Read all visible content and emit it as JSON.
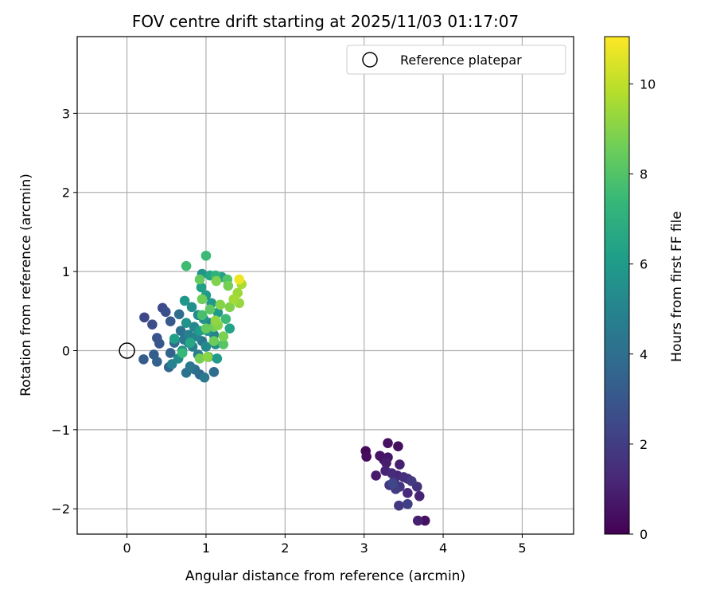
{
  "chart_data": {
    "type": "scatter",
    "title": "FOV centre drift starting at 2025/11/03 01:17:07",
    "xlabel": "Angular distance from reference (arcmin)",
    "ylabel": "Rotation from reference (arcmin)",
    "xlim": [
      -0.63,
      5.65
    ],
    "ylim": [
      -2.32,
      3.97
    ],
    "x_ticks": [
      "0",
      "1",
      "2",
      "3",
      "4",
      "5"
    ],
    "y_ticks": [
      "−2",
      "−1",
      "0",
      "1",
      "2",
      "3"
    ],
    "grid": true,
    "legend": {
      "position": "top-right",
      "entries": [
        "Reference platepar"
      ]
    },
    "reference_point": {
      "x": 0,
      "y": 0,
      "label": "Reference platepar"
    },
    "colorbar": {
      "label": "Hours from first FF file",
      "min": 0,
      "max": 11.05,
      "ticks": [
        "0",
        "2",
        "4",
        "6",
        "8",
        "10"
      ],
      "colormap": "viridis"
    },
    "color_stops": [
      "#440154",
      "#482878",
      "#3e4989",
      "#31688e",
      "#26828e",
      "#1f9e89",
      "#35b779",
      "#6ece58",
      "#b5de2b",
      "#fde725"
    ],
    "series": [
      {
        "points": [
          [
            3.02,
            -1.27,
            0.2
          ],
          [
            3.03,
            -1.34,
            0.3
          ],
          [
            3.3,
            -1.17,
            0.5
          ],
          [
            3.43,
            -1.21,
            0.4
          ],
          [
            3.2,
            -1.33,
            0.6
          ],
          [
            3.3,
            -1.35,
            0.7
          ],
          [
            3.25,
            -1.38,
            0.6
          ],
          [
            3.28,
            -1.42,
            0.9
          ],
          [
            3.45,
            -1.44,
            1.0
          ],
          [
            3.15,
            -1.58,
            0.8
          ],
          [
            3.27,
            -1.52,
            1.1
          ],
          [
            3.35,
            -1.55,
            1.3
          ],
          [
            3.42,
            -1.58,
            1.2
          ],
          [
            3.5,
            -1.6,
            1.5
          ],
          [
            3.55,
            -1.62,
            1.4
          ],
          [
            3.38,
            -1.65,
            1.6
          ],
          [
            3.32,
            -1.7,
            1.8
          ],
          [
            3.45,
            -1.72,
            1.7
          ],
          [
            3.6,
            -1.65,
            1.9
          ],
          [
            3.4,
            -1.75,
            2.0
          ],
          [
            3.67,
            -1.72,
            1.6
          ],
          [
            3.55,
            -1.8,
            1.3
          ],
          [
            3.7,
            -1.84,
            1.1
          ],
          [
            3.44,
            -1.96,
            1.8
          ],
          [
            3.55,
            -1.94,
            2.1
          ],
          [
            3.68,
            -2.15,
            1.0
          ],
          [
            3.77,
            -2.15,
            0.5
          ],
          [
            3.36,
            -1.68,
            2.4
          ]
        ]
      },
      {
        "points": [
          [
            0.22,
            0.42,
            2.4
          ],
          [
            0.32,
            0.33,
            2.6
          ],
          [
            0.45,
            0.54,
            2.5
          ],
          [
            0.49,
            0.49,
            2.7
          ],
          [
            0.38,
            0.16,
            2.9
          ],
          [
            0.41,
            0.09,
            3.0
          ],
          [
            0.55,
            0.37,
            3.1
          ],
          [
            0.21,
            -0.11,
            3.2
          ],
          [
            0.34,
            -0.05,
            3.3
          ],
          [
            0.38,
            -0.14,
            3.4
          ],
          [
            0.55,
            -0.03,
            3.5
          ],
          [
            0.53,
            -0.21,
            3.6
          ],
          [
            0.57,
            -0.17,
            4.9
          ],
          [
            0.6,
            0.1,
            3.8
          ],
          [
            0.68,
            0.25,
            4.1
          ],
          [
            0.66,
            0.46,
            3.9
          ],
          [
            0.72,
            0.14,
            4.3
          ],
          [
            0.78,
            0.1,
            4.6
          ],
          [
            0.75,
            -0.28,
            4.2
          ],
          [
            0.8,
            -0.2,
            4.4
          ],
          [
            0.86,
            -0.24,
            4.0
          ],
          [
            0.92,
            -0.3,
            3.7
          ],
          [
            0.98,
            -0.34,
            4.5
          ],
          [
            1.03,
            -0.08,
            4.8
          ],
          [
            1.1,
            -0.27,
            3.9
          ],
          [
            0.83,
            0.05,
            4.7
          ],
          [
            0.88,
            0.18,
            5.0
          ],
          [
            0.95,
            0.12,
            4.3
          ],
          [
            1.0,
            0.05,
            5.2
          ],
          [
            0.9,
            -0.05,
            4.6
          ],
          [
            0.73,
            0.63,
            5.8
          ],
          [
            0.82,
            0.55,
            5.5
          ],
          [
            0.9,
            0.45,
            5.3
          ],
          [
            0.97,
            0.4,
            5.6
          ],
          [
            1.05,
            0.35,
            5.0
          ],
          [
            1.1,
            0.2,
            4.9
          ],
          [
            1.12,
            0.08,
            5.4
          ],
          [
            1.15,
            0.48,
            6.0
          ],
          [
            0.94,
            0.8,
            6.2
          ],
          [
            1.0,
            0.7,
            6.0
          ],
          [
            1.07,
            0.6,
            5.9
          ],
          [
            0.95,
            0.97,
            5.7
          ],
          [
            0.85,
            0.3,
            5.1
          ],
          [
            0.78,
            0.2,
            4.8
          ],
          [
            0.7,
            0.0,
            5.5
          ],
          [
            0.65,
            -0.1,
            5.3
          ],
          [
            1.02,
            0.25,
            5.8
          ],
          [
            0.92,
            0.25,
            6.1
          ],
          [
            0.75,
            0.35,
            5.6
          ],
          [
            1.3,
            0.28,
            6.4
          ],
          [
            1.2,
            0.93,
            6.3
          ],
          [
            1.05,
            0.95,
            6.5
          ],
          [
            0.8,
            0.1,
            6.6
          ],
          [
            0.6,
            0.15,
            6.2
          ],
          [
            1.14,
            -0.1,
            6.0
          ]
        ]
      },
      {
        "points": [
          [
            0.75,
            1.07,
            7.6
          ],
          [
            1.0,
            1.2,
            7.5
          ],
          [
            1.12,
            0.95,
            7.1
          ],
          [
            1.27,
            0.9,
            8.0
          ],
          [
            0.92,
            0.9,
            8.4
          ],
          [
            1.13,
            0.88,
            8.9
          ],
          [
            1.28,
            0.82,
            8.7
          ],
          [
            1.42,
            0.9,
            10.8
          ],
          [
            1.45,
            0.84,
            9.6
          ],
          [
            1.4,
            0.73,
            9.4
          ],
          [
            1.35,
            0.65,
            9.5
          ],
          [
            1.42,
            0.6,
            9.3
          ],
          [
            1.3,
            0.55,
            8.9
          ],
          [
            1.18,
            0.58,
            9.0
          ],
          [
            0.95,
            0.65,
            8.6
          ],
          [
            1.05,
            0.52,
            8.2
          ],
          [
            1.12,
            0.38,
            9.2
          ],
          [
            1.1,
            0.3,
            8.5
          ],
          [
            1.0,
            0.28,
            8.4
          ],
          [
            1.15,
            0.32,
            9.0
          ],
          [
            1.22,
            0.18,
            8.8
          ],
          [
            1.22,
            0.08,
            8.1
          ],
          [
            1.1,
            0.12,
            8.5
          ],
          [
            0.92,
            -0.1,
            8.7
          ],
          [
            1.02,
            -0.08,
            9.1
          ],
          [
            0.7,
            -0.03,
            7.4
          ],
          [
            0.95,
            0.45,
            7.8
          ],
          [
            1.25,
            0.4,
            7.5
          ]
        ]
      }
    ]
  }
}
